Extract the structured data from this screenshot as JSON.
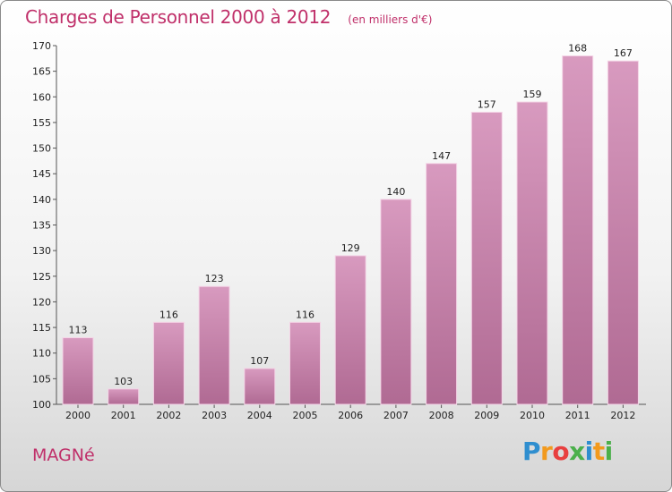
{
  "chart_data": {
    "type": "bar",
    "title": "Charges de Personnel 2000 à 2012",
    "subtitle": "(en milliers d'€)",
    "categories": [
      "2000",
      "2001",
      "2002",
      "2003",
      "2004",
      "2005",
      "2006",
      "2007",
      "2008",
      "2009",
      "2010",
      "2011",
      "2012"
    ],
    "values": [
      113,
      103,
      116,
      123,
      107,
      116,
      129,
      140,
      147,
      157,
      159,
      168,
      167
    ],
    "ylim": [
      100,
      170
    ],
    "yticks": [
      100,
      105,
      110,
      115,
      120,
      125,
      130,
      135,
      140,
      145,
      150,
      155,
      160,
      165,
      170
    ],
    "grid": false,
    "bar_color": "#d89abf",
    "bar_color_dark": "#b06a93"
  },
  "location": "MAGNé",
  "logo": {
    "letters": [
      "P",
      "r",
      "o",
      "x",
      "i",
      "t",
      "i"
    ],
    "colors": [
      "#2f8ecf",
      "#f29a1e",
      "#e83f3f",
      "#4bb04b",
      "#2f8ecf",
      "#f29a1e",
      "#4bb04b"
    ]
  }
}
